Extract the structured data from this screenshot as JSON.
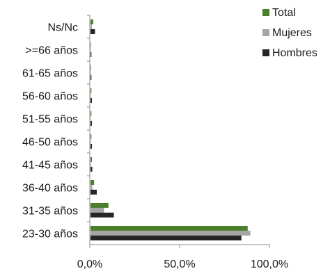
{
  "chart_data": {
    "type": "bar",
    "orientation": "horizontal",
    "categories": [
      "23-30 años",
      "31-35 años",
      "36-40 años",
      "41-45 años",
      "46-50 años",
      "51-55 años",
      "56-60 años",
      "61-65 años",
      ">=66 años",
      "Ns/Nc"
    ],
    "series": [
      {
        "name": "Total",
        "color": "#4a7f2c",
        "values": [
          87.5,
          10.0,
          2.0,
          0.8,
          0.5,
          0.5,
          0.5,
          0.3,
          0.3,
          1.5
        ]
      },
      {
        "name": "Mujeres",
        "color": "#a6a6a6",
        "values": [
          89.0,
          7.5,
          1.0,
          0.3,
          0.3,
          0.3,
          0.3,
          0.3,
          0.3,
          0.8
        ]
      },
      {
        "name": "Hombres",
        "color": "#262626",
        "values": [
          84.0,
          13.0,
          3.5,
          1.0,
          0.8,
          0.8,
          0.8,
          0.5,
          0.5,
          2.5
        ]
      }
    ],
    "xlim": [
      0,
      100
    ],
    "x_ticks": [
      0,
      50,
      100
    ],
    "x_tick_labels": [
      "0,0%",
      "50,0%",
      "100,0%"
    ],
    "legend_position": "top-right",
    "grid": false,
    "title": "",
    "xlabel": "",
    "ylabel": ""
  }
}
